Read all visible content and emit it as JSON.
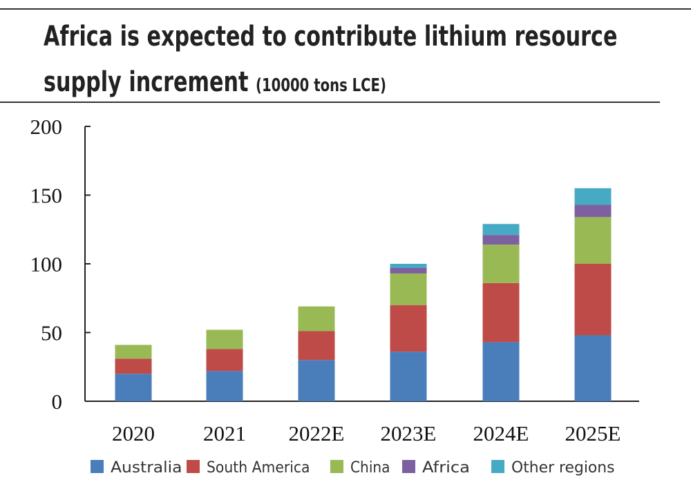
{
  "chart_data": {
    "type": "bar",
    "stacked": true,
    "title": "Africa is expected to contribute lithium resource supply increment",
    "title_unit": "(10000 tons LCE)",
    "categories": [
      "2020",
      "2021",
      "2022E",
      "2023E",
      "2024E",
      "2025E"
    ],
    "series": [
      {
        "name": "Australia",
        "color": "#4a7ebb",
        "values": [
          20,
          22,
          30,
          36,
          43,
          48
        ]
      },
      {
        "name": "South America",
        "color": "#be4b48",
        "values": [
          11,
          16,
          21,
          34,
          43,
          52
        ]
      },
      {
        "name": "China",
        "color": "#98b954",
        "values": [
          10,
          14,
          18,
          23,
          28,
          34
        ]
      },
      {
        "name": "Africa",
        "color": "#7d60a0",
        "values": [
          0,
          0,
          0,
          4,
          7,
          9
        ]
      },
      {
        "name": "Other regions",
        "color": "#46aac5",
        "values": [
          0,
          0,
          0,
          3,
          8,
          12
        ]
      }
    ],
    "ylim": [
      0,
      200
    ],
    "yticks": [
      "0",
      "50",
      "100",
      "150",
      "200"
    ],
    "xlabel": "",
    "ylabel": "",
    "grid": false,
    "legend": "bottom"
  }
}
